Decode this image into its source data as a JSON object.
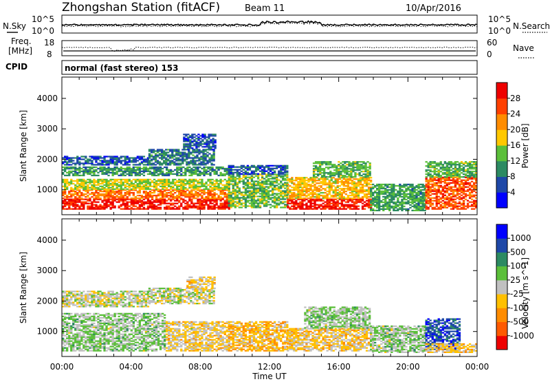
{
  "header": {
    "station": "Zhongshan Station (fitACF)",
    "beam": "Beam 11",
    "date": "10/Apr/2016"
  },
  "top_strip": {
    "left_label": "N.Sky",
    "left_ticks": [
      "10^5",
      "10^0"
    ],
    "right_ticks": [
      "10^5",
      "10^0"
    ],
    "right_label": "N.Search"
  },
  "freq_strip": {
    "label_line1": "Freq.",
    "label_line2": "[MHz]",
    "left_ticks": [
      "18",
      "8"
    ],
    "right_ticks": [
      "60",
      "0"
    ],
    "right_label": "Nave"
  },
  "cpid": {
    "label": "CPID",
    "text": "normal (fast stereo) 153"
  },
  "x_axis": {
    "title": "Time UT",
    "ticks": [
      "00:00",
      "04:00",
      "08:00",
      "12:00",
      "16:00",
      "20:00",
      "00:00"
    ]
  },
  "y_axis": {
    "title": "Slant Range [km]",
    "ticks": [
      "1000",
      "2000",
      "3000",
      "4000"
    ]
  },
  "chart_data": [
    {
      "type": "heatmap",
      "name": "power",
      "x_range_hours": [
        0,
        24
      ],
      "y_range_km": [
        180,
        4700
      ],
      "ylabel": "Slant Range [km]",
      "xlabel": "Time UT",
      "colorbar": {
        "title": "Power [dB]",
        "tick_labels": [
          "4",
          "8",
          "12",
          "16",
          "20",
          "24",
          "28"
        ],
        "range": [
          0,
          30
        ],
        "colors": [
          "#0000ff",
          "#1e48a8",
          "#2c8a62",
          "#5bbf3a",
          "#ffc800",
          "#ff8c00",
          "#ff4000",
          "#ee0000"
        ]
      },
      "bands": [
        {
          "t0": 0.0,
          "t1": 9.6,
          "r0": 350,
          "r1": 700,
          "value": 27
        },
        {
          "t0": 0.0,
          "t1": 9.6,
          "r0": 700,
          "r1": 1000,
          "value": 22
        },
        {
          "t0": 0.0,
          "t1": 9.6,
          "r0": 1000,
          "r1": 1350,
          "value": 15
        },
        {
          "t0": 0.0,
          "t1": 9.6,
          "r0": 1450,
          "r1": 1750,
          "value": 10
        },
        {
          "t0": 0.0,
          "t1": 5.0,
          "r0": 1800,
          "r1": 2100,
          "value": 6
        },
        {
          "t0": 5.0,
          "t1": 8.8,
          "r0": 1800,
          "r1": 2300,
          "value": 8
        },
        {
          "t0": 7.0,
          "t1": 8.8,
          "r0": 2300,
          "r1": 2800,
          "value": 6
        },
        {
          "t0": 9.6,
          "t1": 13.0,
          "r0": 400,
          "r1": 1500,
          "value": 13
        },
        {
          "t0": 9.6,
          "t1": 13.0,
          "r0": 1500,
          "r1": 1800,
          "value": 6
        },
        {
          "t0": 13.0,
          "t1": 17.8,
          "r0": 350,
          "r1": 700,
          "value": 27
        },
        {
          "t0": 13.0,
          "t1": 17.8,
          "r0": 700,
          "r1": 1400,
          "value": 18
        },
        {
          "t0": 14.5,
          "t1": 17.8,
          "r0": 1400,
          "r1": 1900,
          "value": 12
        },
        {
          "t0": 17.8,
          "t1": 21.0,
          "r0": 300,
          "r1": 1200,
          "value": 11
        },
        {
          "t0": 21.0,
          "t1": 24.0,
          "r0": 350,
          "r1": 1400,
          "value": 24
        },
        {
          "t0": 21.0,
          "t1": 24.0,
          "r0": 1400,
          "r1": 1900,
          "value": 12
        }
      ]
    },
    {
      "type": "heatmap",
      "name": "velocity",
      "x_range_hours": [
        0,
        24
      ],
      "y_range_km": [
        180,
        4700
      ],
      "ylabel": "Slant Range [km]",
      "xlabel": "Time UT",
      "colorbar": {
        "title": "Velocity [m s^-1]",
        "tick_labels": [
          "-1000",
          "-500",
          "-100",
          "-25",
          "25",
          "100",
          "500",
          "1000"
        ],
        "range": [
          -1200,
          1200
        ],
        "colors": [
          "#ee0000",
          "#ff5a00",
          "#ff8c00",
          "#ffc000",
          "#c0c0c0",
          "#5bbf3a",
          "#2c8a62",
          "#1e48a8",
          "#0000ff"
        ]
      },
      "bands": [
        {
          "t0": 0.0,
          "t1": 6.0,
          "r0": 350,
          "r1": 1600,
          "value": 150
        },
        {
          "t0": 0.0,
          "t1": 5.0,
          "r0": 1800,
          "r1": 2300,
          "value": 0
        },
        {
          "t0": 5.0,
          "t1": 8.8,
          "r0": 1900,
          "r1": 2400,
          "value": 0
        },
        {
          "t0": 7.2,
          "t1": 8.8,
          "r0": 2400,
          "r1": 2800,
          "value": -150
        },
        {
          "t0": 6.0,
          "t1": 9.6,
          "r0": 350,
          "r1": 1300,
          "value": -150
        },
        {
          "t0": 9.6,
          "t1": 13.0,
          "r0": 350,
          "r1": 1300,
          "value": -300
        },
        {
          "t0": 13.0,
          "t1": 17.8,
          "r0": 350,
          "r1": 1100,
          "value": -200
        },
        {
          "t0": 14.0,
          "t1": 17.8,
          "r0": 1100,
          "r1": 1800,
          "value": 150
        },
        {
          "t0": 17.8,
          "t1": 21.0,
          "r0": 300,
          "r1": 1200,
          "value": 150
        },
        {
          "t0": 21.0,
          "t1": 23.0,
          "r0": 400,
          "r1": 1400,
          "value": 800
        },
        {
          "t0": 21.0,
          "t1": 24.0,
          "r0": 300,
          "r1": 600,
          "value": -200
        }
      ]
    }
  ],
  "colors": {
    "axes": "#000000",
    "background": "#ffffff"
  }
}
